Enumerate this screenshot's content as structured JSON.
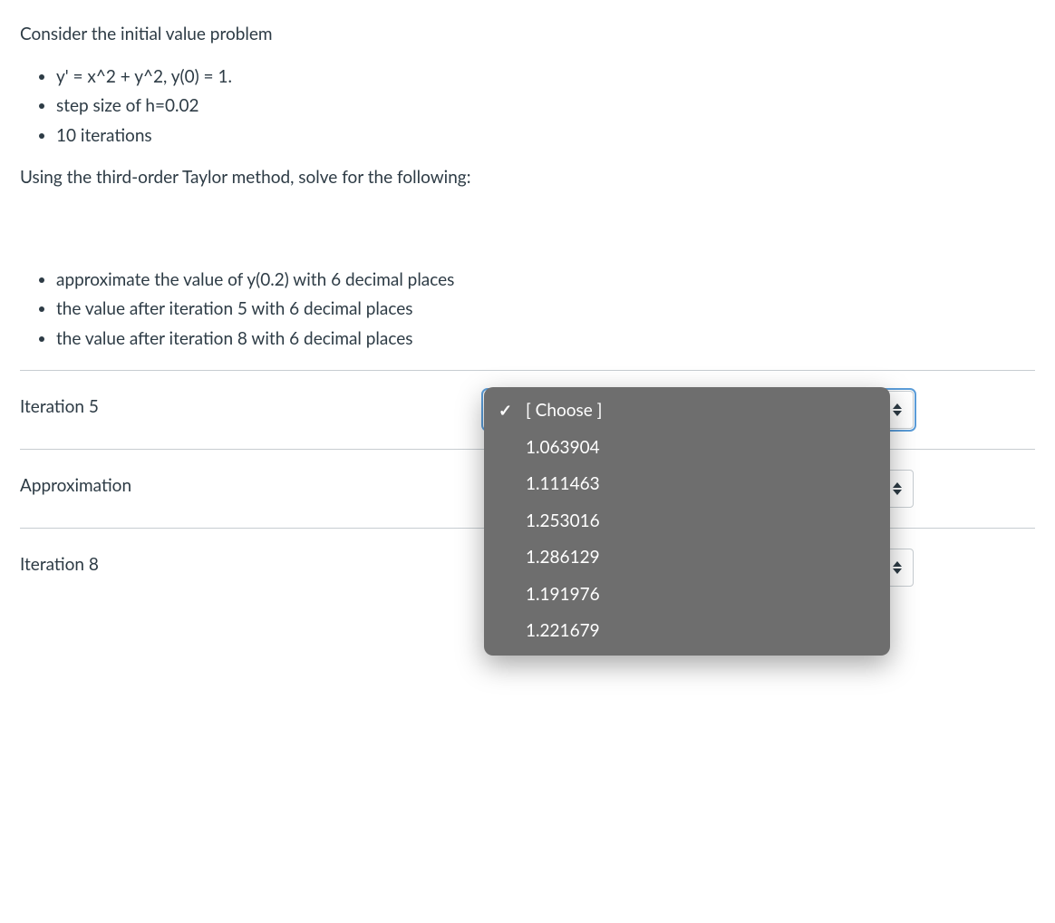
{
  "question": {
    "intro": "Consider the initial value problem",
    "given": [
      "y' = x^2 + y^2, y(0) = 1.",
      "step size of h=0.02",
      "10 iterations"
    ],
    "instruction": "Using the third-order Taylor method, solve for the following:",
    "tasks": [
      "approximate the value of y(0.2) with 6 decimal places",
      "the value after iteration 5 with 6 decimal places",
      "the value after iteration 8 with 6 decimal places"
    ]
  },
  "answers": [
    {
      "label": "Iteration 5",
      "focused": true
    },
    {
      "label": "Approximation",
      "focused": false
    },
    {
      "label": "Iteration 8",
      "focused": false
    }
  ],
  "dropdown": {
    "visible_on_row": 0,
    "placeholder": "[ Choose ]",
    "options": [
      "1.063904",
      "1.111463",
      "1.253016",
      "1.286129",
      "1.191976",
      "1.221679"
    ]
  },
  "colors": {
    "text": "#2d3b45",
    "divider": "#c7cdd1",
    "focus_ring": "#5b9dd9",
    "popup_bg": "#6e6e6e",
    "popup_text": "#ffffff"
  }
}
